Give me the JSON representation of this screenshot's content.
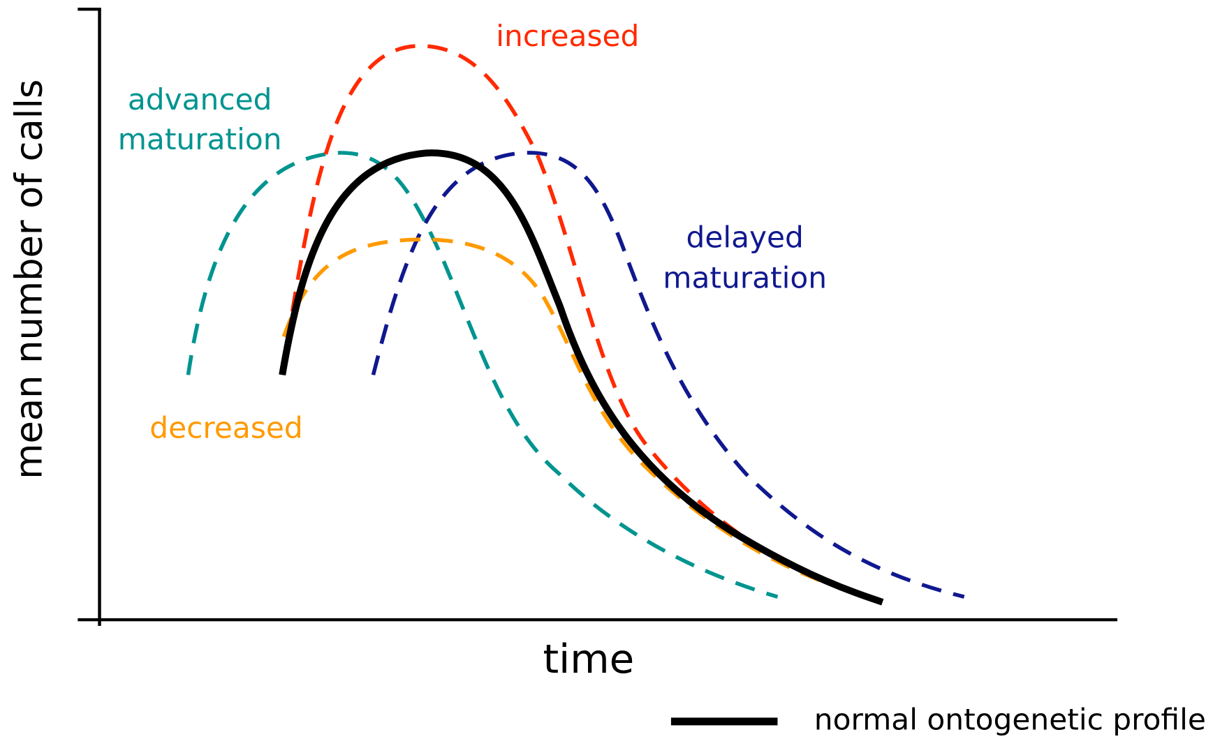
{
  "y_axis_label": "mean number of calls",
  "x_axis_label": "time",
  "curve_labels": {
    "increased": [
      "increased"
    ],
    "advanced": [
      "advanced",
      "maturation"
    ],
    "delayed": [
      "delayed",
      "maturation"
    ],
    "decreased": [
      "decreased"
    ]
  },
  "legend": {
    "label": "normal ontogenetic profile"
  }
}
